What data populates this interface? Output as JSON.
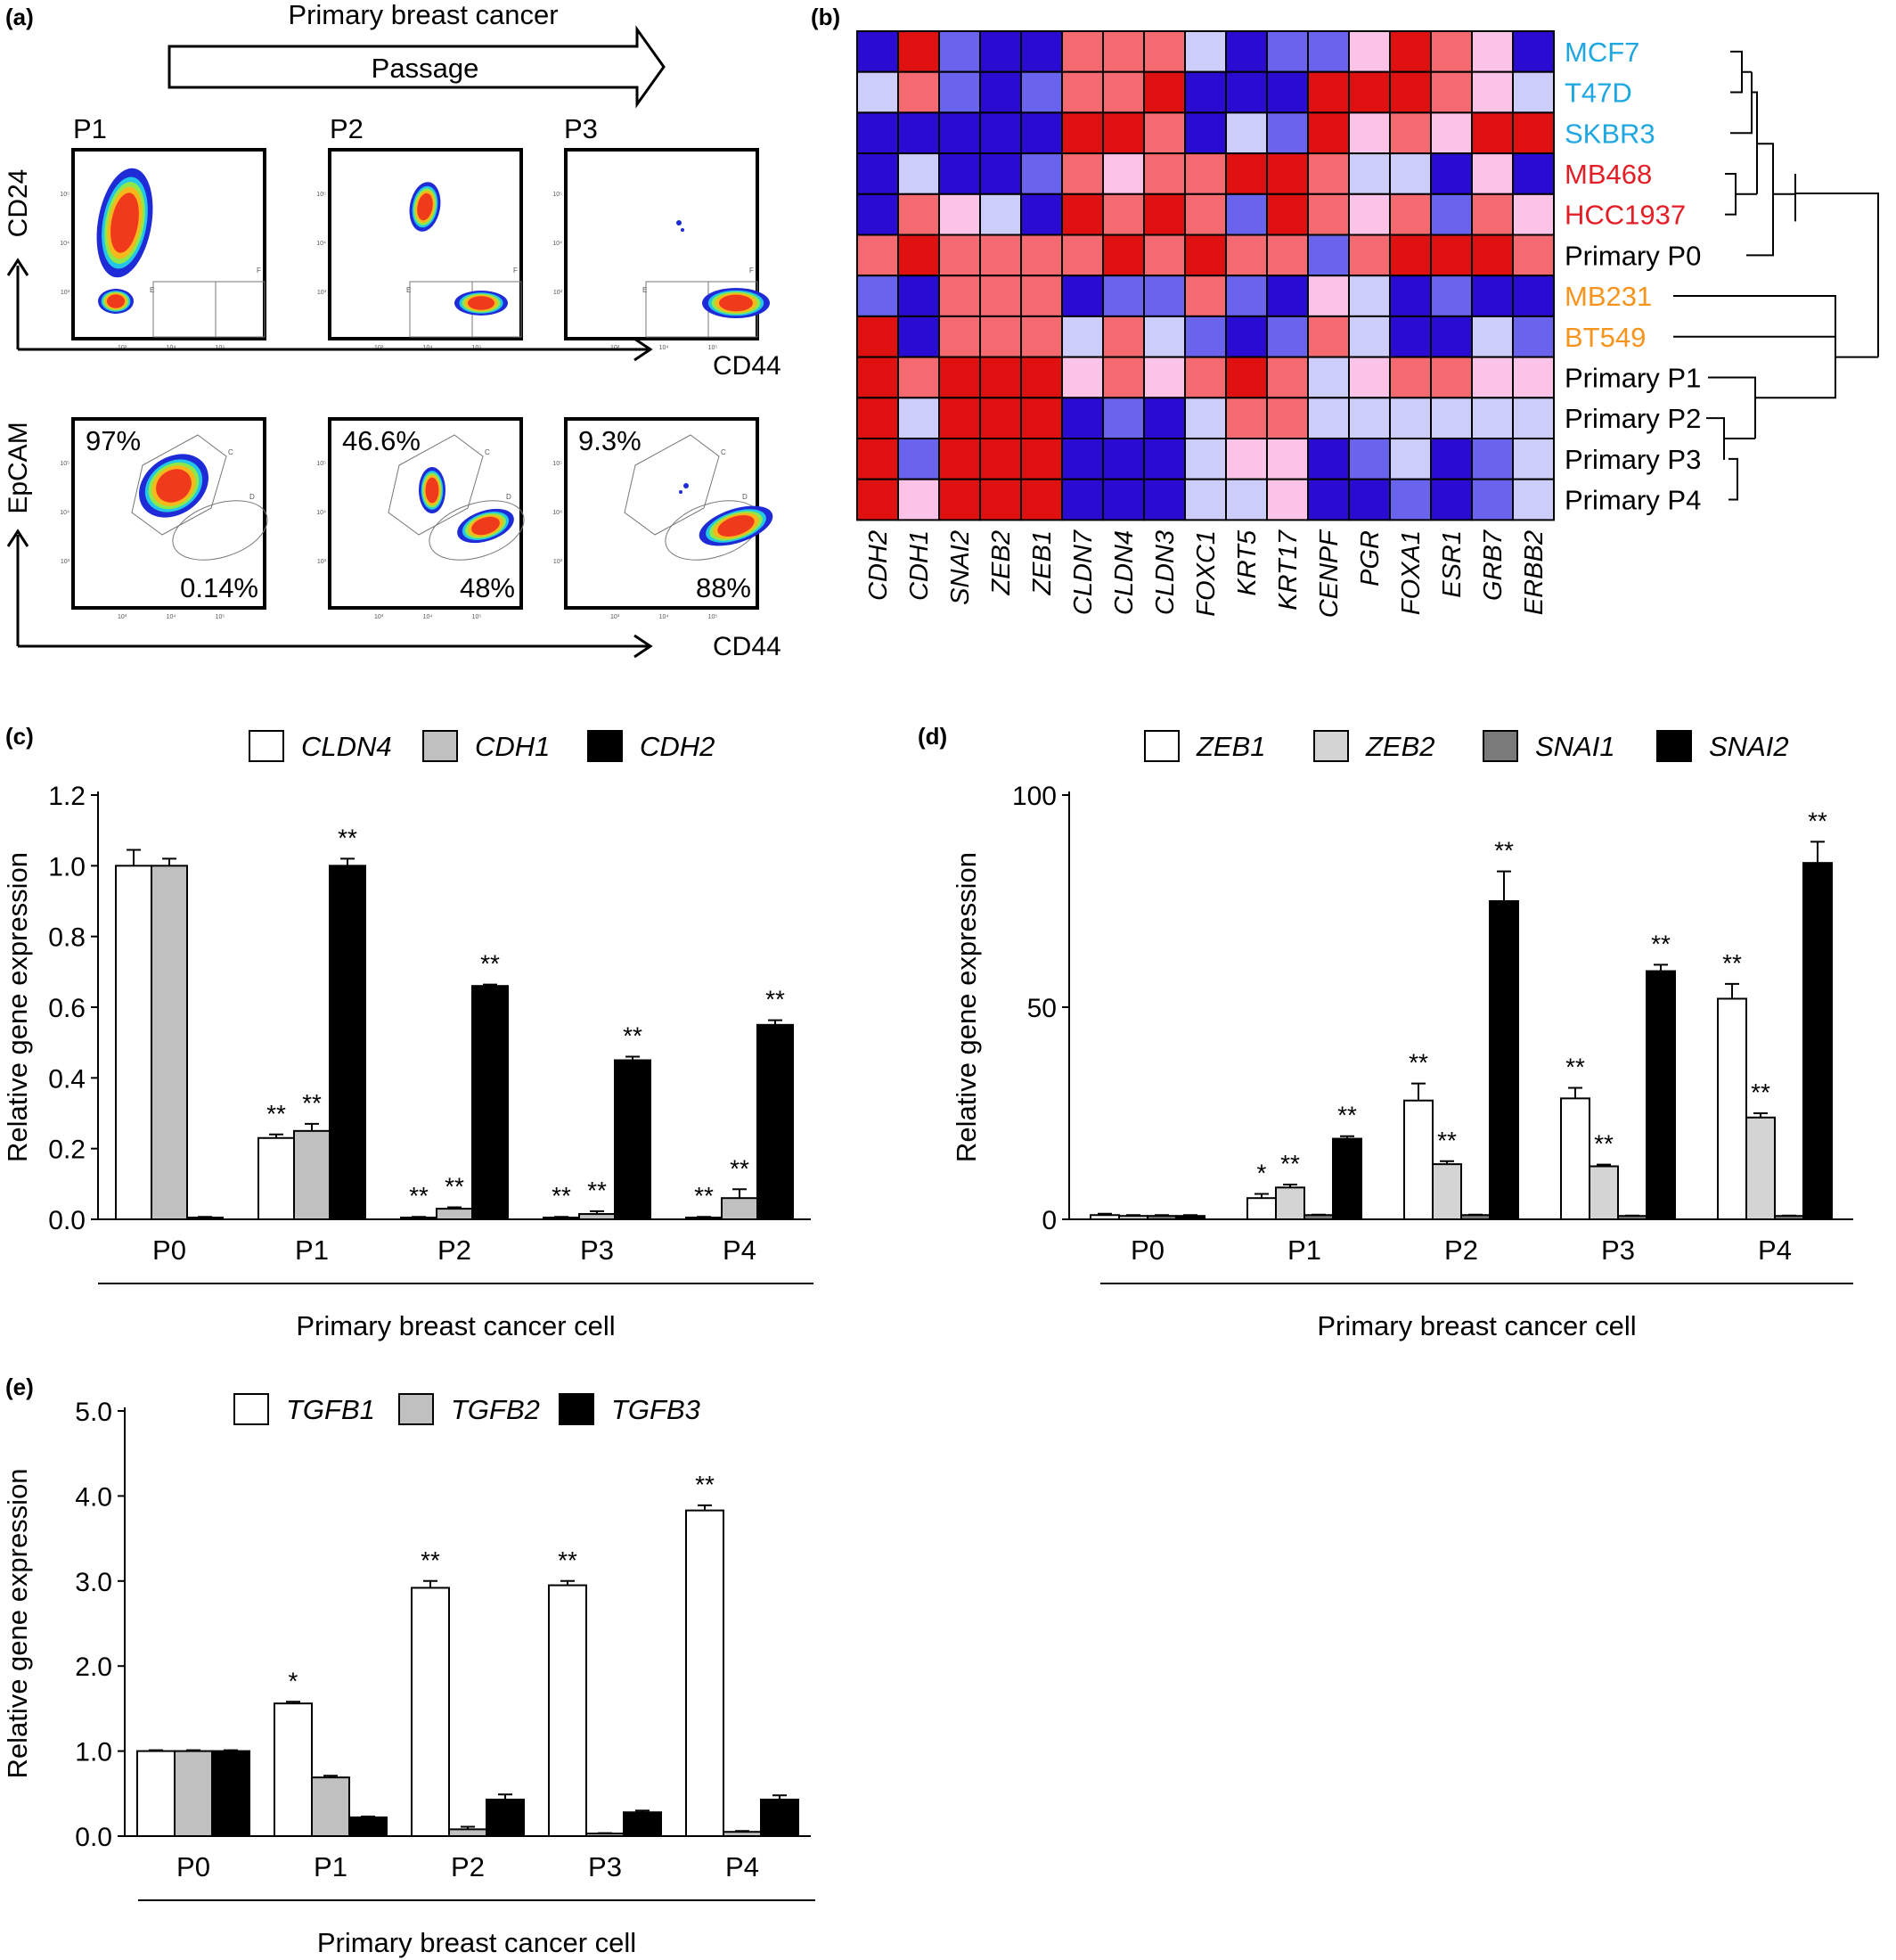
{
  "panel_labels": [
    "(a)",
    "(b)",
    "(c)",
    "(d)",
    "(e)"
  ],
  "panel_a": {
    "arrow_top_text": "Primary breast cancer",
    "arrow_inner_text": "Passage",
    "passage_labels": [
      "P1",
      "P2",
      "P3"
    ],
    "row1": {
      "y_label": "CD24",
      "x_label": "CD44",
      "gate_letters": [
        "E",
        "F"
      ]
    },
    "row2": {
      "y_label": "EpCAM",
      "x_label": "CD44",
      "gate_letters": [
        "C",
        "D"
      ],
      "percent_upper": [
        "97%",
        "46.6%",
        "9.3%"
      ],
      "percent_lower": [
        "0.14%",
        "48%",
        "88%"
      ]
    },
    "tick_labels": [
      "10³",
      "10⁴",
      "10⁵"
    ]
  },
  "panel_b": {
    "type": "heatmap",
    "genes": [
      "CDH2",
      "CDH1",
      "SNAI2",
      "ZEB2",
      "ZEB1",
      "CLDN7",
      "CLDN4",
      "CLDN3",
      "FOXC1",
      "KRT5",
      "KRT17",
      "CENPF",
      "PGR",
      "FOXA1",
      "ESR1",
      "GRB7",
      "ERBB2"
    ],
    "rows": [
      {
        "name": "MCF7",
        "color": "#1ea7e0"
      },
      {
        "name": "T47D",
        "color": "#1ea7e0"
      },
      {
        "name": "SKBR3",
        "color": "#1ea7e0"
      },
      {
        "name": "MB468",
        "color": "#e41e26"
      },
      {
        "name": "HCC1937",
        "color": "#e41e26"
      },
      {
        "name": "Primary P0",
        "color": "#000000"
      },
      {
        "name": "MB231",
        "color": "#f7941d"
      },
      {
        "name": "BT549",
        "color": "#f7941d"
      },
      {
        "name": "Primary P1",
        "color": "#000000"
      },
      {
        "name": "Primary P2",
        "color": "#000000"
      },
      {
        "name": "Primary P3",
        "color": "#000000"
      },
      {
        "name": "Primary P4",
        "color": "#000000"
      }
    ],
    "values": [
      [
        -3,
        3,
        -2,
        -3,
        -3,
        2,
        2,
        2,
        -1,
        -3,
        -2,
        -2,
        1,
        3,
        2,
        1,
        -3
      ],
      [
        -1,
        2,
        -2,
        -3,
        -2,
        2,
        2,
        3,
        -3,
        -3,
        -3,
        3,
        3,
        3,
        2,
        1,
        -1
      ],
      [
        -3,
        -3,
        -3,
        -3,
        -3,
        3,
        3,
        2,
        -3,
        -1,
        -2,
        3,
        1,
        2,
        1,
        3,
        3
      ],
      [
        -3,
        -1,
        -3,
        -3,
        -2,
        2,
        1,
        2,
        2,
        3,
        3,
        2,
        -1,
        -1,
        -3,
        1,
        -3
      ],
      [
        -3,
        2,
        1,
        -1,
        -3,
        3,
        2,
        3,
        2,
        -2,
        3,
        2,
        1,
        2,
        -2,
        2,
        1
      ],
      [
        2,
        3,
        2,
        2,
        2,
        2,
        3,
        2,
        3,
        2,
        2,
        -2,
        2,
        3,
        3,
        3,
        2
      ],
      [
        -2,
        -3,
        2,
        2,
        2,
        -3,
        -2,
        -2,
        2,
        -2,
        -3,
        1,
        -1,
        -3,
        -2,
        -3,
        -3
      ],
      [
        3,
        -3,
        2,
        2,
        2,
        -1,
        2,
        -1,
        -2,
        -3,
        -2,
        2,
        -1,
        -3,
        -3,
        -1,
        -2
      ],
      [
        3,
        2,
        3,
        3,
        3,
        1,
        2,
        1,
        2,
        3,
        2,
        -1,
        1,
        2,
        2,
        1,
        1
      ],
      [
        3,
        -1,
        3,
        3,
        3,
        -3,
        -2,
        -3,
        -1,
        2,
        2,
        -1,
        -1,
        -1,
        -1,
        -1,
        -1
      ],
      [
        3,
        -2,
        3,
        3,
        3,
        -3,
        -3,
        -3,
        -1,
        1,
        1,
        -3,
        -2,
        -1,
        -3,
        -2,
        -1
      ],
      [
        3,
        1,
        3,
        3,
        3,
        -3,
        -3,
        -3,
        -1,
        -1,
        1,
        -3,
        -3,
        -2,
        -3,
        -2,
        -1
      ]
    ],
    "colors": {
      "-3": "#2a0bd1",
      "-2": "#6a63ee",
      "-1": "#cdcdfb",
      "1": "#fbc3e8",
      "2": "#f56a70",
      "3": "#de1010"
    }
  },
  "chart_data": [
    {
      "panel": "c",
      "type": "bar",
      "categories": [
        "P0",
        "P1",
        "P2",
        "P3",
        "P4"
      ],
      "series": [
        {
          "name": "CLDN4",
          "values": [
            1.0,
            0.23,
            0.005,
            0.005,
            0.005
          ],
          "errors": [
            0.045,
            0.01,
            0.002,
            0.002,
            0.002
          ],
          "color": "#ffffff"
        },
        {
          "name": "CDH1",
          "values": [
            1.0,
            0.25,
            0.03,
            0.015,
            0.06
          ],
          "errors": [
            0.02,
            0.02,
            0.004,
            0.008,
            0.025
          ],
          "color": "#c0c0c0"
        },
        {
          "name": "CDH2",
          "values": [
            0.005,
            1.0,
            0.66,
            0.45,
            0.55
          ],
          "errors": [
            0.002,
            0.02,
            0.004,
            0.01,
            0.013
          ],
          "color": "#000000"
        }
      ],
      "significance": [
        [
          "",
          "",
          ""
        ],
        [
          "**",
          "**",
          "**"
        ],
        [
          "**",
          "**",
          "**"
        ],
        [
          "**",
          "**",
          "**"
        ],
        [
          "**",
          "**",
          "**"
        ]
      ],
      "ylabel": "Relative gene expression",
      "xlabel": "Primary breast cancer cell",
      "ylim": [
        0,
        1.2
      ],
      "yticks": [
        "0.0",
        "0.2",
        "0.4",
        "0.6",
        "0.8",
        "1.0",
        "1.2"
      ]
    },
    {
      "panel": "d",
      "type": "bar",
      "categories": [
        "P0",
        "P1",
        "P2",
        "P3",
        "P4"
      ],
      "series": [
        {
          "name": "ZEB1",
          "values": [
            1,
            5,
            28,
            28.5,
            52
          ],
          "errors": [
            0.3,
            1,
            4,
            2.5,
            3.5
          ],
          "color": "#ffffff"
        },
        {
          "name": "ZEB2",
          "values": [
            0.8,
            7.5,
            13,
            12.5,
            24
          ],
          "errors": [
            0.2,
            0.7,
            0.7,
            0.4,
            1
          ],
          "color": "#d4d4d4"
        },
        {
          "name": "SNAI1",
          "values": [
            0.8,
            1,
            1,
            0.8,
            0.8
          ],
          "errors": [
            0.2,
            0.1,
            0.1,
            0.1,
            0.1
          ],
          "color": "#7a7a7a"
        },
        {
          "name": "SNAI2",
          "values": [
            0.8,
            19,
            75,
            58.5,
            84
          ],
          "errors": [
            0.2,
            0.6,
            7,
            1.5,
            5
          ],
          "color": "#000000"
        }
      ],
      "significance": [
        [
          "",
          "",
          "",
          ""
        ],
        [
          "*",
          "**",
          "",
          "**"
        ],
        [
          "**",
          "**",
          "",
          "**"
        ],
        [
          "**",
          "**",
          "",
          "**"
        ],
        [
          "**",
          "**",
          "",
          "**"
        ]
      ],
      "ylabel": "Relative  gene expression",
      "xlabel": "Primary breast cancer cell",
      "ylim": [
        0,
        100
      ],
      "yticks": [
        "0",
        "50",
        "100"
      ]
    },
    {
      "panel": "e",
      "type": "bar",
      "categories": [
        "P0",
        "P1",
        "P2",
        "P3",
        "P4"
      ],
      "series": [
        {
          "name": "TGFB1",
          "values": [
            1.0,
            1.56,
            2.92,
            2.95,
            3.83
          ],
          "errors": [
            0.01,
            0.02,
            0.08,
            0.05,
            0.06
          ],
          "color": "#ffffff"
        },
        {
          "name": "TGFB2",
          "values": [
            1.0,
            0.69,
            0.08,
            0.03,
            0.05
          ],
          "errors": [
            0.01,
            0.02,
            0.03,
            0.005,
            0.01
          ],
          "color": "#c0c0c0"
        },
        {
          "name": "TGFB3",
          "values": [
            1.0,
            0.22,
            0.43,
            0.28,
            0.43
          ],
          "errors": [
            0.01,
            0.01,
            0.06,
            0.02,
            0.05
          ],
          "color": "#000000"
        }
      ],
      "significance": [
        [
          "",
          "",
          ""
        ],
        [
          "*",
          "",
          ""
        ],
        [
          "**",
          "",
          ""
        ],
        [
          "**",
          "",
          ""
        ],
        [
          "**",
          "",
          ""
        ]
      ],
      "ylabel": "Relative gene expression",
      "xlabel": "Primary breast cancer cell",
      "ylim": [
        0,
        5.0
      ],
      "yticks": [
        "0.0",
        "1.0",
        "2.0",
        "3.0",
        "4.0",
        "5.0"
      ]
    }
  ]
}
